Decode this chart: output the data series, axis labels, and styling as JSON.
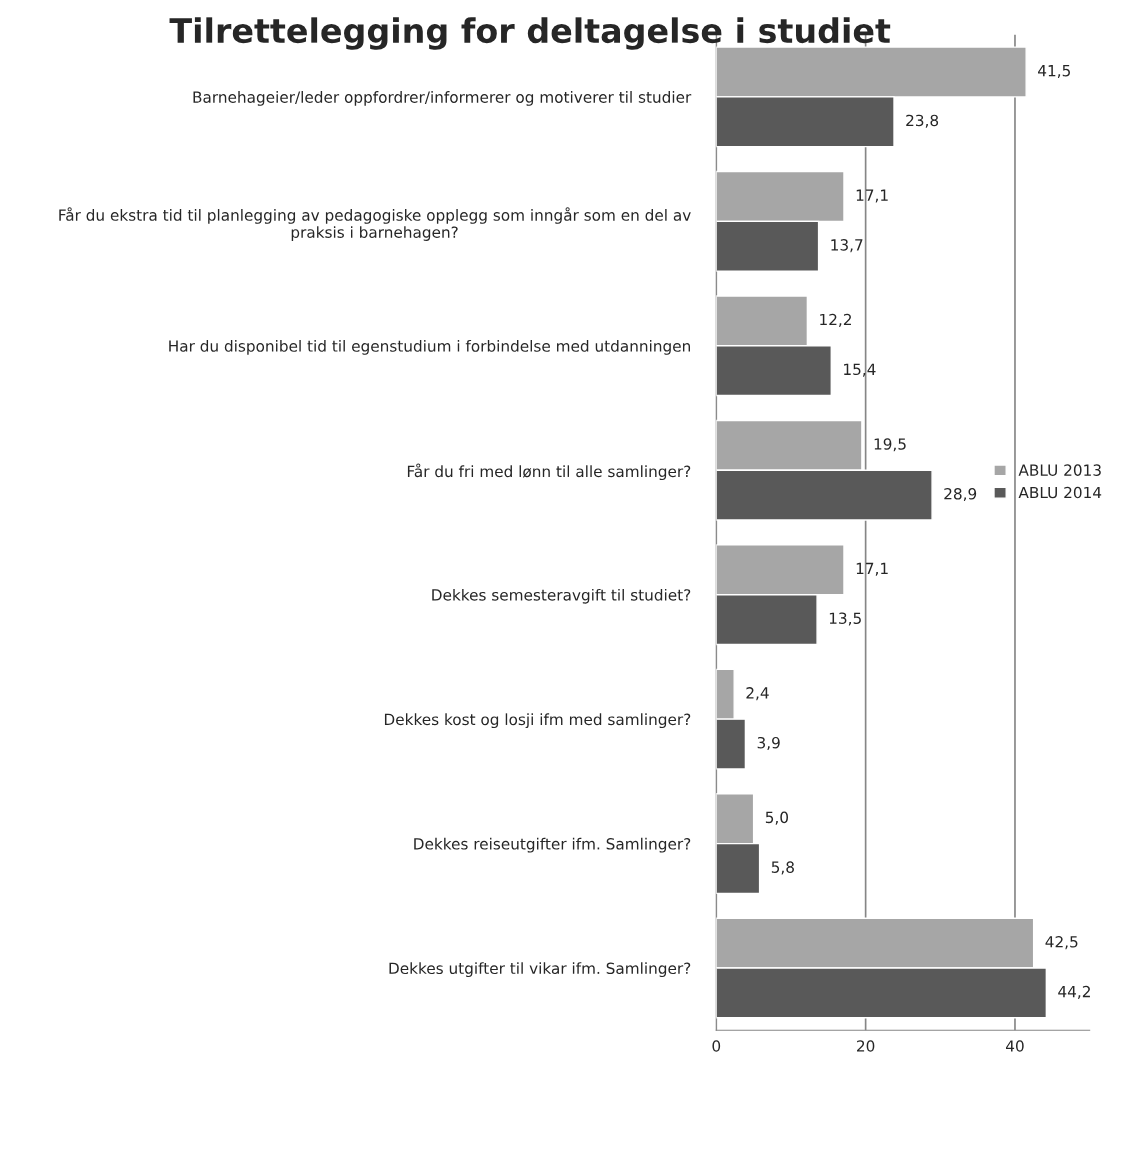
{
  "chart_data": {
    "type": "bar",
    "orientation": "horizontal",
    "title": "Tilrettelegging for deltagelse i studiet",
    "categories": [
      "Barnehageier/leder oppfordrer/informerer og motiverer til studier",
      "Får du ekstra tid til planlegging av pedagogiske opplegg som inngår som en del av praksis i barnehagen?",
      "Har du disponibel tid til egenstudium i forbindelse med utdanningen",
      "Får du fri med lønn til alle samlinger?",
      "Dekkes semesteravgift til studiet?",
      "Dekkes kost og losji ifm med samlinger?",
      "Dekkes reiseutgifter ifm. Samlinger?",
      "Dekkes utgifter til vikar ifm. Samlinger?"
    ],
    "series": [
      {
        "name": "ABLU 2013",
        "color": "#a6a6a6",
        "values": [
          41.5,
          17.1,
          12.2,
          19.5,
          17.1,
          2.4,
          5.0,
          42.5
        ],
        "value_labels": [
          "41,5",
          "17,1",
          "12,2",
          "19,5",
          "17,1",
          "2,4",
          "5,0",
          "42,5"
        ]
      },
      {
        "name": "ABLU 2014",
        "color": "#595959",
        "values": [
          23.8,
          13.7,
          15.4,
          28.9,
          13.5,
          3.9,
          5.8,
          44.2
        ],
        "value_labels": [
          "23,8",
          "13,7",
          "15,4",
          "28,9",
          "13,5",
          "3,9",
          "5,8",
          "44,2"
        ]
      }
    ],
    "xlim": [
      0,
      50
    ],
    "xticks": [
      0,
      20,
      40
    ],
    "grid": "x",
    "legend": "right"
  }
}
